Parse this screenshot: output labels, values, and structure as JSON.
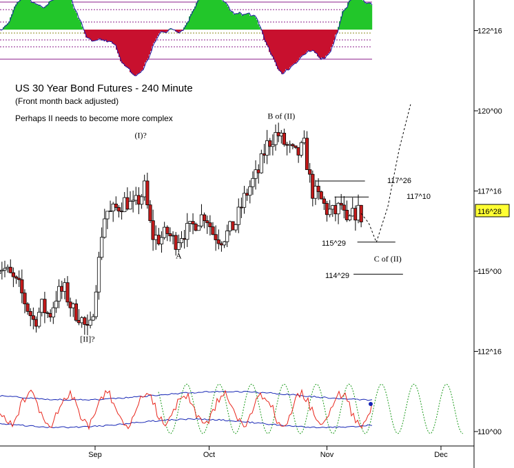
{
  "chart_data": {
    "type": "candlestick",
    "title": "US 30 Year Bond Futures - 240 Minute",
    "subtitle": "(Front month back adjusted)",
    "note": "Perhaps II needs to become more complex",
    "y_ticks": [
      "122^16",
      "120^00",
      "117^16",
      "115^00",
      "112^16",
      "110^00"
    ],
    "y_tick_values": [
      122.5,
      120.0,
      117.5,
      115.0,
      112.5,
      110.0
    ],
    "ylim": [
      109.8,
      123.0
    ],
    "x_ticks": [
      "Sep",
      "Oct",
      "Nov",
      "Dec"
    ],
    "x_tick_days": [
      31,
      61,
      92,
      122
    ],
    "xlim": [
      5,
      131
    ],
    "current_price": "116^28",
    "current_price_value": 116.875,
    "price_path": [
      [
        5,
        115.2
      ],
      [
        7,
        115.1
      ],
      [
        9,
        114.8
      ],
      [
        11,
        114.5
      ],
      [
        13,
        113.9
      ],
      [
        15,
        113.4
      ],
      [
        17,
        113.9
      ],
      [
        19,
        113.6
      ],
      [
        21,
        114.3
      ],
      [
        23,
        114.4
      ],
      [
        25,
        113.8
      ],
      [
        27,
        113.6
      ],
      [
        29,
        113.1
      ],
      [
        30,
        113.3
      ],
      [
        31,
        114.4
      ],
      [
        32,
        115.3
      ],
      [
        33,
        116.5
      ],
      [
        34,
        116.9
      ],
      [
        35,
        116.8
      ],
      [
        37,
        117.0
      ],
      [
        39,
        117.2
      ],
      [
        41,
        117.0
      ],
      [
        43,
        117.3
      ],
      [
        44,
        117.6
      ],
      [
        45,
        116.8
      ],
      [
        46,
        116.1
      ],
      [
        48,
        116.0
      ],
      [
        50,
        116.2
      ],
      [
        52,
        115.9
      ],
      [
        54,
        116.2
      ],
      [
        56,
        116.3
      ],
      [
        58,
        116.6
      ],
      [
        60,
        116.8
      ],
      [
        62,
        116.2
      ],
      [
        64,
        116.0
      ],
      [
        66,
        116.2
      ],
      [
        68,
        116.5
      ],
      [
        70,
        117.2
      ],
      [
        72,
        117.7
      ],
      [
        74,
        118.1
      ],
      [
        76,
        118.9
      ],
      [
        78,
        119.2
      ],
      [
        79,
        119.3
      ],
      [
        80,
        119.1
      ],
      [
        82,
        118.8
      ],
      [
        84,
        118.6
      ],
      [
        86,
        118.9
      ],
      [
        88,
        117.5
      ],
      [
        90,
        117.3
      ],
      [
        92,
        116.9
      ],
      [
        94,
        116.8
      ],
      [
        96,
        117.1
      ],
      [
        97,
        116.3
      ],
      [
        98,
        116.6
      ],
      [
        100,
        116.9
      ],
      [
        101,
        116.7
      ]
    ],
    "forecast_path": [
      [
        101,
        116.8
      ],
      [
        103,
        116.5
      ],
      [
        105,
        115.9
      ],
      [
        108,
        117.0
      ],
      [
        111,
        118.8
      ],
      [
        114,
        120.2
      ]
    ],
    "levels": [
      {
        "label": "117^26",
        "value": 117.8125,
        "from_day": 89,
        "to_day": 102
      },
      {
        "label": "117^10",
        "value": 117.3125,
        "from_day": 94,
        "to_day": 103
      },
      {
        "label": "115^29",
        "value": 115.906,
        "from_day": 100,
        "to_day": 110
      },
      {
        "label": "114^29",
        "value": 114.906,
        "from_day": 99,
        "to_day": 112
      }
    ],
    "wave_labels": [
      {
        "text": "(I)?",
        "day": 43,
        "value": 119.15
      },
      {
        "text": "A",
        "day": 53,
        "value": 115.4
      },
      {
        "text": "B of (II)",
        "day": 80,
        "value": 119.75
      },
      {
        "text": "C of (II)",
        "day": 108,
        "value": 115.3
      },
      {
        "text": "[II]?",
        "day": 29,
        "value": 112.8
      }
    ],
    "top_oscillator": {
      "type": "area",
      "positive_color": "#22c62a",
      "negative_color": "#c8102e",
      "line_color": "#1a1aa8"
    },
    "bottom_oscillator": {
      "type": "line",
      "series_colors": [
        "#e8241a",
        "#1424b4",
        "#1a9a1a"
      ]
    }
  }
}
